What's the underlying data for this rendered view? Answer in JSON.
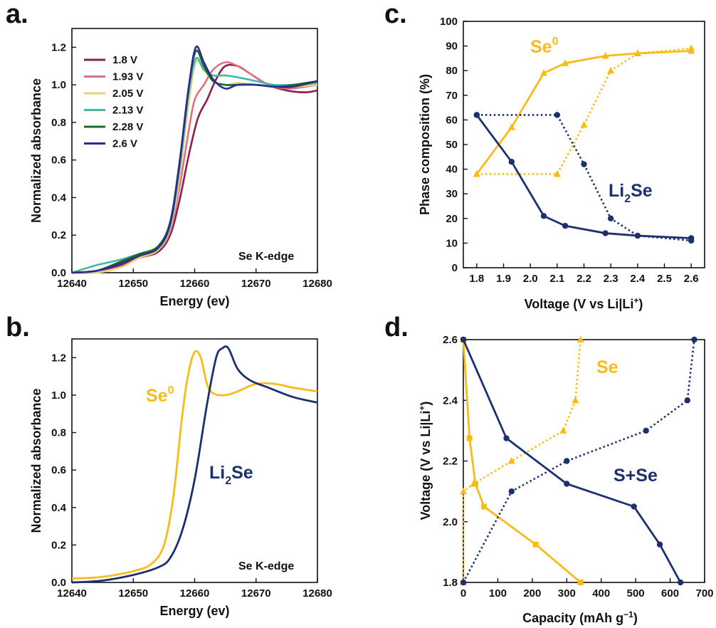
{
  "colors": {
    "gold": "#F7BC1B",
    "navy": "#1C2F6E",
    "c1_8": "#8C1D4E",
    "c1_93": "#E0727E",
    "c2_05": "#E4D27A",
    "c2_13": "#3FB8A5",
    "c2_28": "#176B2C",
    "c2_6": "#2E2A8E"
  },
  "panels": {
    "a": "a.",
    "b": "b.",
    "c": "c.",
    "d": "d."
  },
  "chart_data": [
    {
      "id": "a",
      "type": "line",
      "xlabel": "Energy (ev)",
      "ylabel": "Normalized absorbance",
      "xlim": [
        12640,
        12680
      ],
      "ylim": [
        0,
        1.3
      ],
      "xticks": [
        "12640",
        "12650",
        "12660",
        "12670",
        "12680"
      ],
      "yticks": [
        "0.0",
        "0.2",
        "0.4",
        "0.6",
        "0.8",
        "1.0",
        "1.2"
      ],
      "annotation": "Se K-edge",
      "legend_position": "top-left",
      "series": [
        {
          "name": "1.8 V",
          "color": "#8C1D4E",
          "x": [
            12640,
            12644,
            12648,
            12651,
            12654,
            12656,
            12657.5,
            12659,
            12660.5,
            12662,
            12663.5,
            12665,
            12667,
            12669,
            12672,
            12675,
            12678,
            12680
          ],
          "y": [
            0.0,
            0.01,
            0.04,
            0.08,
            0.11,
            0.2,
            0.38,
            0.62,
            0.82,
            0.92,
            1.03,
            1.1,
            1.1,
            1.06,
            1.0,
            0.97,
            0.96,
            0.97
          ]
        },
        {
          "name": "1.93 V",
          "color": "#E0727E",
          "x": [
            12640,
            12644,
            12648,
            12651,
            12654,
            12656,
            12657.5,
            12659,
            12660,
            12661.5,
            12663,
            12665,
            12667,
            12669,
            12672,
            12675,
            12678,
            12680
          ],
          "y": [
            0.0,
            0.01,
            0.05,
            0.09,
            0.12,
            0.22,
            0.45,
            0.75,
            0.92,
            1.0,
            1.08,
            1.12,
            1.1,
            1.06,
            1.0,
            0.98,
            0.99,
            1.0
          ]
        },
        {
          "name": "2.05 V",
          "color": "#E4D27A",
          "x": [
            12640,
            12644,
            12648,
            12651,
            12654,
            12656,
            12657.5,
            12659,
            12660.2,
            12661.5,
            12663,
            12665,
            12667,
            12670,
            12673,
            12676,
            12680
          ],
          "y": [
            0.0,
            0.0,
            0.03,
            0.08,
            0.12,
            0.24,
            0.5,
            0.9,
            1.12,
            1.08,
            1.02,
            1.0,
            1.01,
            1.0,
            0.99,
            0.99,
            1.0
          ]
        },
        {
          "name": "2.13 V",
          "color": "#3FB8A5",
          "x": [
            12640,
            12644,
            12648,
            12651,
            12654,
            12656,
            12657.5,
            12659,
            12660.2,
            12661.5,
            12663,
            12665,
            12667,
            12670,
            12673,
            12676,
            12680
          ],
          "y": [
            0.0,
            0.04,
            0.07,
            0.1,
            0.13,
            0.25,
            0.55,
            0.95,
            1.14,
            1.08,
            1.05,
            1.05,
            1.04,
            1.02,
            1.0,
            1.0,
            1.01
          ]
        },
        {
          "name": "2.28 V",
          "color": "#176B2C",
          "x": [
            12640,
            12644,
            12648,
            12651,
            12654,
            12656,
            12657.5,
            12659,
            12660.2,
            12661.5,
            12663,
            12665,
            12667,
            12670,
            12673,
            12676,
            12680
          ],
          "y": [
            0.0,
            0.01,
            0.06,
            0.1,
            0.14,
            0.27,
            0.58,
            0.98,
            1.18,
            1.1,
            1.02,
            1.0,
            1.0,
            1.0,
            0.99,
            1.0,
            1.02
          ]
        },
        {
          "name": "2.6 V",
          "color": "#2E2A8E",
          "x": [
            12640,
            12644,
            12648,
            12651,
            12654,
            12656,
            12657.5,
            12659,
            12660.2,
            12661.5,
            12663,
            12665,
            12667,
            12670,
            12673,
            12676,
            12680
          ],
          "y": [
            0.0,
            0.01,
            0.05,
            0.09,
            0.13,
            0.26,
            0.57,
            0.98,
            1.2,
            1.12,
            1.03,
            0.98,
            1.0,
            1.0,
            0.99,
            0.99,
            1.02
          ]
        }
      ]
    },
    {
      "id": "b",
      "type": "line",
      "xlabel": "Energy (ev)",
      "ylabel": "Normalized absorbance",
      "xlim": [
        12640,
        12680
      ],
      "ylim": [
        0,
        1.3
      ],
      "xticks": [
        "12640",
        "12650",
        "12660",
        "12670",
        "12680"
      ],
      "yticks": [
        "0.0",
        "0.2",
        "0.4",
        "0.6",
        "0.8",
        "1.0",
        "1.2"
      ],
      "annotation": "Se K-edge",
      "series": [
        {
          "label_main": "Se",
          "label_sup": "0",
          "color": "#F7BC1B",
          "x": [
            12640,
            12645,
            12650,
            12653,
            12655,
            12656.5,
            12658,
            12659,
            12660,
            12661,
            12662,
            12663,
            12665,
            12667,
            12670,
            12673,
            12676,
            12680
          ],
          "y": [
            0.02,
            0.03,
            0.06,
            0.1,
            0.2,
            0.45,
            0.9,
            1.12,
            1.23,
            1.2,
            1.06,
            1.01,
            1.0,
            1.02,
            1.06,
            1.06,
            1.04,
            1.02
          ]
        },
        {
          "label_main": "Li",
          "label_sub": "2",
          "label_tail": "Se",
          "color": "#1C2F6E",
          "x": [
            12640,
            12645,
            12650,
            12654,
            12656,
            12658,
            12660,
            12662,
            12663.5,
            12664.5,
            12665.5,
            12667,
            12669,
            12672,
            12676,
            12680
          ],
          "y": [
            0.0,
            0.01,
            0.04,
            0.08,
            0.13,
            0.28,
            0.55,
            0.95,
            1.2,
            1.25,
            1.25,
            1.14,
            1.08,
            1.04,
            0.99,
            0.96
          ]
        }
      ]
    },
    {
      "id": "c",
      "type": "line",
      "xlabel_main": "Voltage (V vs Li|Li",
      "xlabel_sup": "+",
      "xlabel_tail": ")",
      "ylabel": "Phase composition (%)",
      "xlim": [
        1.75,
        2.65
      ],
      "ylim": [
        0,
        100
      ],
      "xticks": [
        "1.8",
        "1.9",
        "2.0",
        "2.1",
        "2.2",
        "2.3",
        "2.4",
        "2.5",
        "2.6"
      ],
      "yticks": [
        "0",
        "10",
        "20",
        "30",
        "40",
        "50",
        "60",
        "70",
        "80",
        "90",
        "100"
      ],
      "labels": {
        "se0_main": "Se",
        "se0_sup": "0",
        "li2se_main": "Li",
        "li2se_sub": "2",
        "li2se_tail": "Se"
      },
      "series": [
        {
          "phase": "Se0",
          "branch": "solid",
          "color": "#F7BC1B",
          "marker": "triangle",
          "x": [
            1.8,
            1.93,
            2.05,
            2.13,
            2.28,
            2.4,
            2.6
          ],
          "y": [
            38,
            57,
            79,
            83,
            86,
            87,
            88
          ]
        },
        {
          "phase": "Se0",
          "branch": "dotted",
          "color": "#F7BC1B",
          "marker": "triangle",
          "x": [
            1.8,
            2.1,
            2.2,
            2.3,
            2.4,
            2.6
          ],
          "y": [
            38,
            38,
            58,
            80,
            87,
            89
          ]
        },
        {
          "phase": "Li2Se",
          "branch": "solid",
          "color": "#1C2F6E",
          "marker": "circle",
          "x": [
            1.8,
            1.93,
            2.05,
            2.13,
            2.28,
            2.4,
            2.6
          ],
          "y": [
            62,
            43,
            21,
            17,
            14,
            13,
            12
          ]
        },
        {
          "phase": "Li2Se",
          "branch": "dotted",
          "color": "#1C2F6E",
          "marker": "circle",
          "x": [
            1.8,
            2.1,
            2.2,
            2.3,
            2.4,
            2.6
          ],
          "y": [
            62,
            62,
            42,
            20,
            13,
            11
          ]
        }
      ]
    },
    {
      "id": "d",
      "type": "line",
      "xlabel_main": "Capacity (mAh g",
      "xlabel_sup": "−1",
      "xlabel_tail": ")",
      "ylabel_main": "Voltage (V vs Li|Li",
      "ylabel_sup": "+",
      "ylabel_tail": ")",
      "xlim": [
        0,
        700
      ],
      "ylim": [
        1.8,
        2.6
      ],
      "xticks": [
        "0",
        "100",
        "200",
        "300",
        "400",
        "500",
        "600",
        "700"
      ],
      "yticks": [
        "1.8",
        "2.0",
        "2.2",
        "2.4",
        "2.6"
      ],
      "labels": {
        "se": "Se",
        "sse": "S+Se"
      },
      "series": [
        {
          "name": "Se",
          "branch": "solid",
          "color": "#F7BC1B",
          "marker": "square",
          "x": [
            0,
            18,
            35,
            60,
            210,
            340
          ],
          "y": [
            2.6,
            2.275,
            2.125,
            2.05,
            1.925,
            1.8
          ]
        },
        {
          "name": "Se",
          "branch": "dotted",
          "color": "#F7BC1B",
          "marker": "triangle",
          "x": [
            0,
            0,
            30,
            140,
            290,
            325,
            340
          ],
          "y": [
            1.8,
            2.1,
            2.125,
            2.2,
            2.3,
            2.4,
            2.6
          ]
        },
        {
          "name": "S+Se",
          "branch": "solid",
          "color": "#1C2F6E",
          "marker": "circle",
          "x": [
            0,
            125,
            300,
            495,
            570,
            630
          ],
          "y": [
            2.6,
            2.275,
            2.125,
            2.05,
            1.925,
            1.8
          ]
        },
        {
          "name": "S+Se",
          "branch": "dotted",
          "color": "#1C2F6E",
          "marker": "circle",
          "x": [
            0,
            140,
            300,
            530,
            650,
            670
          ],
          "y": [
            1.8,
            2.1,
            2.2,
            2.3,
            2.4,
            2.6
          ]
        }
      ]
    }
  ]
}
